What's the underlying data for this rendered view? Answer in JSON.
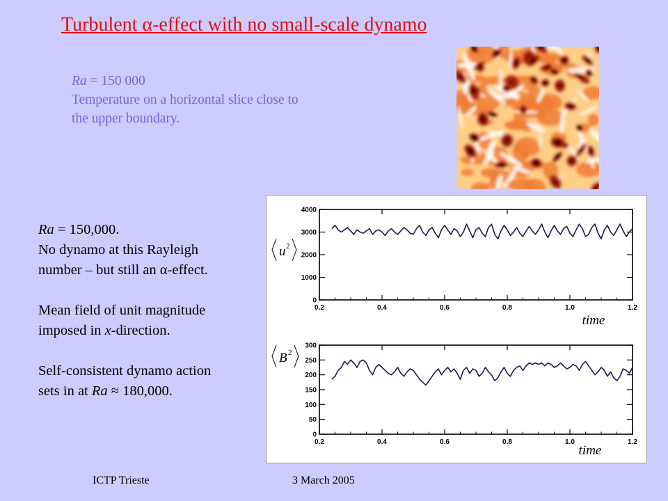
{
  "title": "Turbulent α-effect with no small-scale dynamo",
  "top_caption": {
    "ra_symbol": "Ra",
    "ra_value": " = 150 000",
    "line2": "Temperature on a horizontal slice close to",
    "line3": "the upper boundary."
  },
  "temperature_image": {
    "colors": [
      "#fffaf0",
      "#ffce85",
      "#f07c33",
      "#b1220d",
      "#4a0000"
    ]
  },
  "left_text": {
    "p1_ra_symbol": "Ra",
    "p1_ra_value": " = 150,000.",
    "p1_line2": "No dynamo at this Rayleigh",
    "p1_line3": "number – but still an α-effect.",
    "p2_line1": "Mean field of unit magnitude",
    "p2_line2_prefix": "imposed in ",
    "p2_line2_var": "x",
    "p2_line2_suffix": "-direction.",
    "p3_line1": "Self-consistent dynamo action",
    "p3_line2_prefix": "sets in at ",
    "p3_line2_var": "Ra",
    "p3_line2_op": " ≈ ",
    "p3_line2_value": "180,000."
  },
  "chart_data": [
    {
      "type": "line",
      "ylabel": "u",
      "ylabel_sup": "2",
      "xlabel": "time",
      "xlim": [
        0.2,
        1.2
      ],
      "ylim": [
        0,
        4000
      ],
      "xticks": [
        "0.2",
        "0.4",
        "0.6",
        "0.8",
        "1.0",
        "1.2"
      ],
      "yticks": [
        "0",
        "1000",
        "2000",
        "3000",
        "4000"
      ],
      "series": [
        {
          "x": [
            0.24,
            0.25,
            0.26,
            0.27,
            0.28,
            0.29,
            0.3,
            0.31,
            0.32,
            0.33,
            0.34,
            0.35,
            0.36,
            0.37,
            0.38,
            0.39,
            0.4,
            0.41,
            0.42,
            0.43,
            0.44,
            0.45,
            0.46,
            0.47,
            0.48,
            0.49,
            0.5,
            0.51,
            0.52,
            0.53,
            0.54,
            0.55,
            0.56,
            0.57,
            0.58,
            0.59,
            0.6,
            0.61,
            0.62,
            0.63,
            0.64,
            0.65,
            0.66,
            0.67,
            0.68,
            0.69,
            0.7,
            0.71,
            0.72,
            0.73,
            0.74,
            0.75,
            0.76,
            0.77,
            0.78,
            0.79,
            0.8,
            0.81,
            0.82,
            0.83,
            0.84,
            0.85,
            0.86,
            0.87,
            0.88,
            0.89,
            0.9,
            0.91,
            0.92,
            0.93,
            0.94,
            0.95,
            0.96,
            0.97,
            0.98,
            0.99,
            1.0,
            1.01,
            1.02,
            1.03,
            1.04,
            1.05,
            1.06,
            1.07,
            1.08,
            1.09,
            1.1,
            1.11,
            1.12,
            1.13,
            1.14,
            1.15,
            1.16,
            1.17,
            1.18,
            1.19,
            1.2
          ],
          "y": [
            3150,
            3300,
            3100,
            3000,
            3100,
            3200,
            3050,
            2900,
            3100,
            3000,
            2950,
            3050,
            3150,
            2900,
            3050,
            3100,
            3000,
            2850,
            3050,
            3150,
            3000,
            2900,
            3050,
            3200,
            3100,
            2950,
            2900,
            3150,
            3300,
            3000,
            2850,
            3100,
            3200,
            2950,
            2750,
            3100,
            3300,
            3100,
            2900,
            3150,
            3050,
            2800,
            3000,
            3350,
            3050,
            2750,
            3100,
            3200,
            2950,
            2800,
            3200,
            3350,
            2900,
            2700,
            3050,
            3300,
            3100,
            2850,
            3000,
            3200,
            2950,
            2800,
            3050,
            3250,
            3050,
            2900,
            3100,
            3350,
            3000,
            2750,
            3050,
            3300,
            3050,
            2900,
            3150,
            3250,
            2950,
            2800,
            3100,
            3350,
            3150,
            2800,
            2900,
            3200,
            3350,
            2950,
            2700,
            3100,
            3300,
            3000,
            2850,
            3100,
            3350,
            3050,
            2800,
            3000,
            3150
          ]
        }
      ]
    },
    {
      "type": "line",
      "ylabel": "B",
      "ylabel_sup": "2",
      "xlabel": "time",
      "xlim": [
        0.2,
        1.2
      ],
      "ylim": [
        0,
        300
      ],
      "xticks": [
        "0.2",
        "0.4",
        "0.6",
        "0.8",
        "1.0",
        "1.2"
      ],
      "yticks": [
        "0",
        "50",
        "100",
        "150",
        "200",
        "250",
        "300"
      ],
      "series": [
        {
          "x": [
            0.24,
            0.25,
            0.26,
            0.27,
            0.28,
            0.29,
            0.3,
            0.31,
            0.32,
            0.33,
            0.34,
            0.35,
            0.36,
            0.37,
            0.38,
            0.39,
            0.4,
            0.41,
            0.42,
            0.43,
            0.44,
            0.45,
            0.46,
            0.47,
            0.48,
            0.49,
            0.5,
            0.51,
            0.52,
            0.53,
            0.54,
            0.55,
            0.56,
            0.57,
            0.58,
            0.59,
            0.6,
            0.61,
            0.62,
            0.63,
            0.64,
            0.65,
            0.66,
            0.67,
            0.68,
            0.69,
            0.7,
            0.71,
            0.72,
            0.73,
            0.74,
            0.75,
            0.76,
            0.77,
            0.78,
            0.79,
            0.8,
            0.81,
            0.82,
            0.83,
            0.84,
            0.85,
            0.86,
            0.87,
            0.88,
            0.89,
            0.9,
            0.91,
            0.92,
            0.93,
            0.94,
            0.95,
            0.96,
            0.97,
            0.98,
            0.99,
            1.0,
            1.01,
            1.02,
            1.03,
            1.04,
            1.05,
            1.06,
            1.07,
            1.08,
            1.09,
            1.1,
            1.11,
            1.12,
            1.13,
            1.14,
            1.15,
            1.16,
            1.17,
            1.18,
            1.19,
            1.2
          ],
          "y": [
            185,
            195,
            215,
            225,
            245,
            235,
            250,
            240,
            225,
            245,
            250,
            240,
            215,
            200,
            225,
            235,
            225,
            215,
            205,
            200,
            210,
            225,
            205,
            195,
            210,
            220,
            215,
            200,
            185,
            175,
            165,
            180,
            195,
            210,
            220,
            200,
            215,
            225,
            210,
            220,
            205,
            185,
            215,
            225,
            205,
            220,
            215,
            195,
            205,
            225,
            210,
            200,
            180,
            190,
            210,
            225,
            205,
            195,
            215,
            225,
            230,
            215,
            230,
            240,
            235,
            240,
            235,
            240,
            230,
            240,
            235,
            225,
            230,
            240,
            230,
            220,
            225,
            235,
            230,
            215,
            235,
            245,
            230,
            215,
            200,
            210,
            225,
            215,
            195,
            210,
            190,
            180,
            195,
            220,
            215,
            205,
            225
          ]
        }
      ]
    }
  ],
  "footer": {
    "left": "ICTP Trieste",
    "right": "3 March 2005"
  }
}
